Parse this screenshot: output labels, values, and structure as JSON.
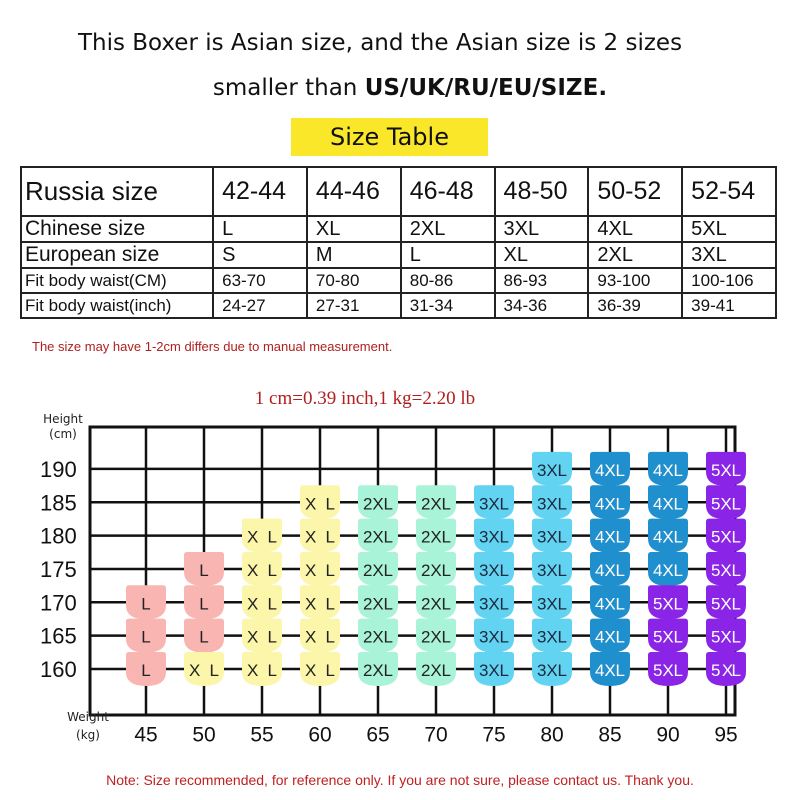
{
  "heading": {
    "line1": "This Boxer is Asian size, and the Asian size is 2 sizes",
    "line2_prefix": "smaller than ",
    "line2_bold": "US/UK/RU/EU/SIZE."
  },
  "table_title": "Size Table",
  "size_table": {
    "rows": [
      {
        "label": "Russia size",
        "values": [
          "42-44",
          "44-46",
          "46-48",
          "48-50",
          "50-52",
          "52-54"
        ]
      },
      {
        "label": "Chinese size",
        "values": [
          "L",
          "XL",
          "2XL",
          "3XL",
          "4XL",
          "5XL"
        ]
      },
      {
        "label": "European size",
        "values": [
          "S",
          "M",
          "L",
          "XL",
          "2XL",
          "3XL"
        ]
      },
      {
        "label": "Fit body waist(CM)",
        "values": [
          "63-70",
          "70-80",
          "80-86",
          "86-93",
          "93-100",
          "100-106"
        ]
      },
      {
        "label": "Fit body waist(inch)",
        "values": [
          "24-27",
          "27-31",
          "31-34",
          "34-36",
          "36-39",
          "39-41"
        ]
      }
    ]
  },
  "measurement_note": "The size may have 1-2cm differs due to manual measurement.",
  "conversion": "1 cm=0.39 inch,1 kg=2.20 lb",
  "size_grid": {
    "y_label": [
      "Height",
      "(cm)"
    ],
    "x_label": [
      "Weight",
      "(kg)"
    ],
    "heights": [
      190,
      185,
      180,
      175,
      170,
      165,
      160
    ],
    "weights": [
      45,
      50,
      55,
      60,
      65,
      70,
      75,
      80,
      85,
      90,
      95
    ],
    "cells": [
      [
        null,
        null,
        null,
        null,
        null,
        null,
        null,
        "3XL",
        "4XL",
        "4XL",
        "5XL"
      ],
      [
        null,
        null,
        null,
        "XL",
        "2XL",
        "2XL",
        "3XL",
        "3XL",
        "4XL",
        "4XL",
        "5XL"
      ],
      [
        null,
        null,
        "XL",
        "XL",
        "2XL",
        "2XL",
        "3XL",
        "3XL",
        "4XL",
        "4XL",
        "5XL"
      ],
      [
        null,
        "L",
        "XL",
        "XL",
        "2XL",
        "2XL",
        "3XL",
        "3XL",
        "4XL",
        "4XL",
        "5XL"
      ],
      [
        "L",
        "L",
        "XL",
        "XL",
        "2XL",
        "2XL",
        "3XL",
        "3XL",
        "4XL",
        "5XL",
        "5XL"
      ],
      [
        "L",
        "L",
        "XL",
        "XL",
        "2XL",
        "2XL",
        "3XL",
        "3XL",
        "4XL",
        "5XL",
        "5XL"
      ],
      [
        "L",
        "XL",
        "XL",
        "XL",
        "2XL",
        "2XL",
        "3XL",
        "3XL",
        "4XL",
        "5XL",
        "5 XL"
      ]
    ],
    "size_colors": {
      "L": {
        "fill": "#f9b5b1",
        "text": "#222222"
      },
      "XL": {
        "fill": "#fbf6a9",
        "text": "#222222"
      },
      "2XL": {
        "fill": "#a9f3d8",
        "text": "#222222"
      },
      "3XL": {
        "fill": "#62d4f1",
        "text": "#1a2a40"
      },
      "4XL": {
        "fill": "#1f8fcd",
        "text": "#ffffff"
      },
      "5XL": {
        "fill": "#8a24e6",
        "text": "#ffffff"
      }
    }
  },
  "footer_note": "Note: Size recommended, for reference only. If you are not sure, please contact us. Thank you."
}
